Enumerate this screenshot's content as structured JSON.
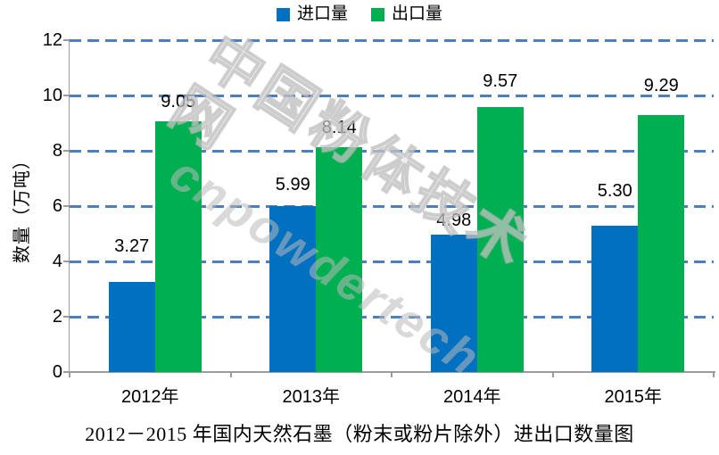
{
  "legend": {
    "items": [
      {
        "label": "进口量"
      },
      {
        "label": "出口量"
      }
    ]
  },
  "chart_data": {
    "type": "bar",
    "title": "2012－2015 年国内天然石墨（粉末或粉片除外）进出口数量图",
    "categories": [
      "2012年",
      "2013年",
      "2014年",
      "2015年"
    ],
    "series": [
      {
        "name": "进口量",
        "color": "#0070C0",
        "values": [
          3.27,
          5.99,
          4.98,
          5.3
        ],
        "labels": [
          "3.27",
          "5.99",
          "4.98",
          "5.30"
        ]
      },
      {
        "name": "出口量",
        "color": "#00B050",
        "values": [
          9.05,
          8.14,
          9.57,
          9.29
        ],
        "labels": [
          "9.05",
          "8.14",
          "9.57",
          "9.29"
        ]
      }
    ],
    "xlabel": "",
    "ylabel": "数量（万吨）",
    "ylim": [
      0,
      12
    ],
    "yticks": [
      0,
      2,
      4,
      6,
      8,
      10,
      12
    ],
    "grid": "horizontal-dashed",
    "gridline_color": "#4D7EBD",
    "axis_color": "#9C9C9C",
    "legend_position": "top"
  },
  "watermark": {
    "line1": "中国粉体技术网",
    "line2": "cnpowdertech"
  }
}
